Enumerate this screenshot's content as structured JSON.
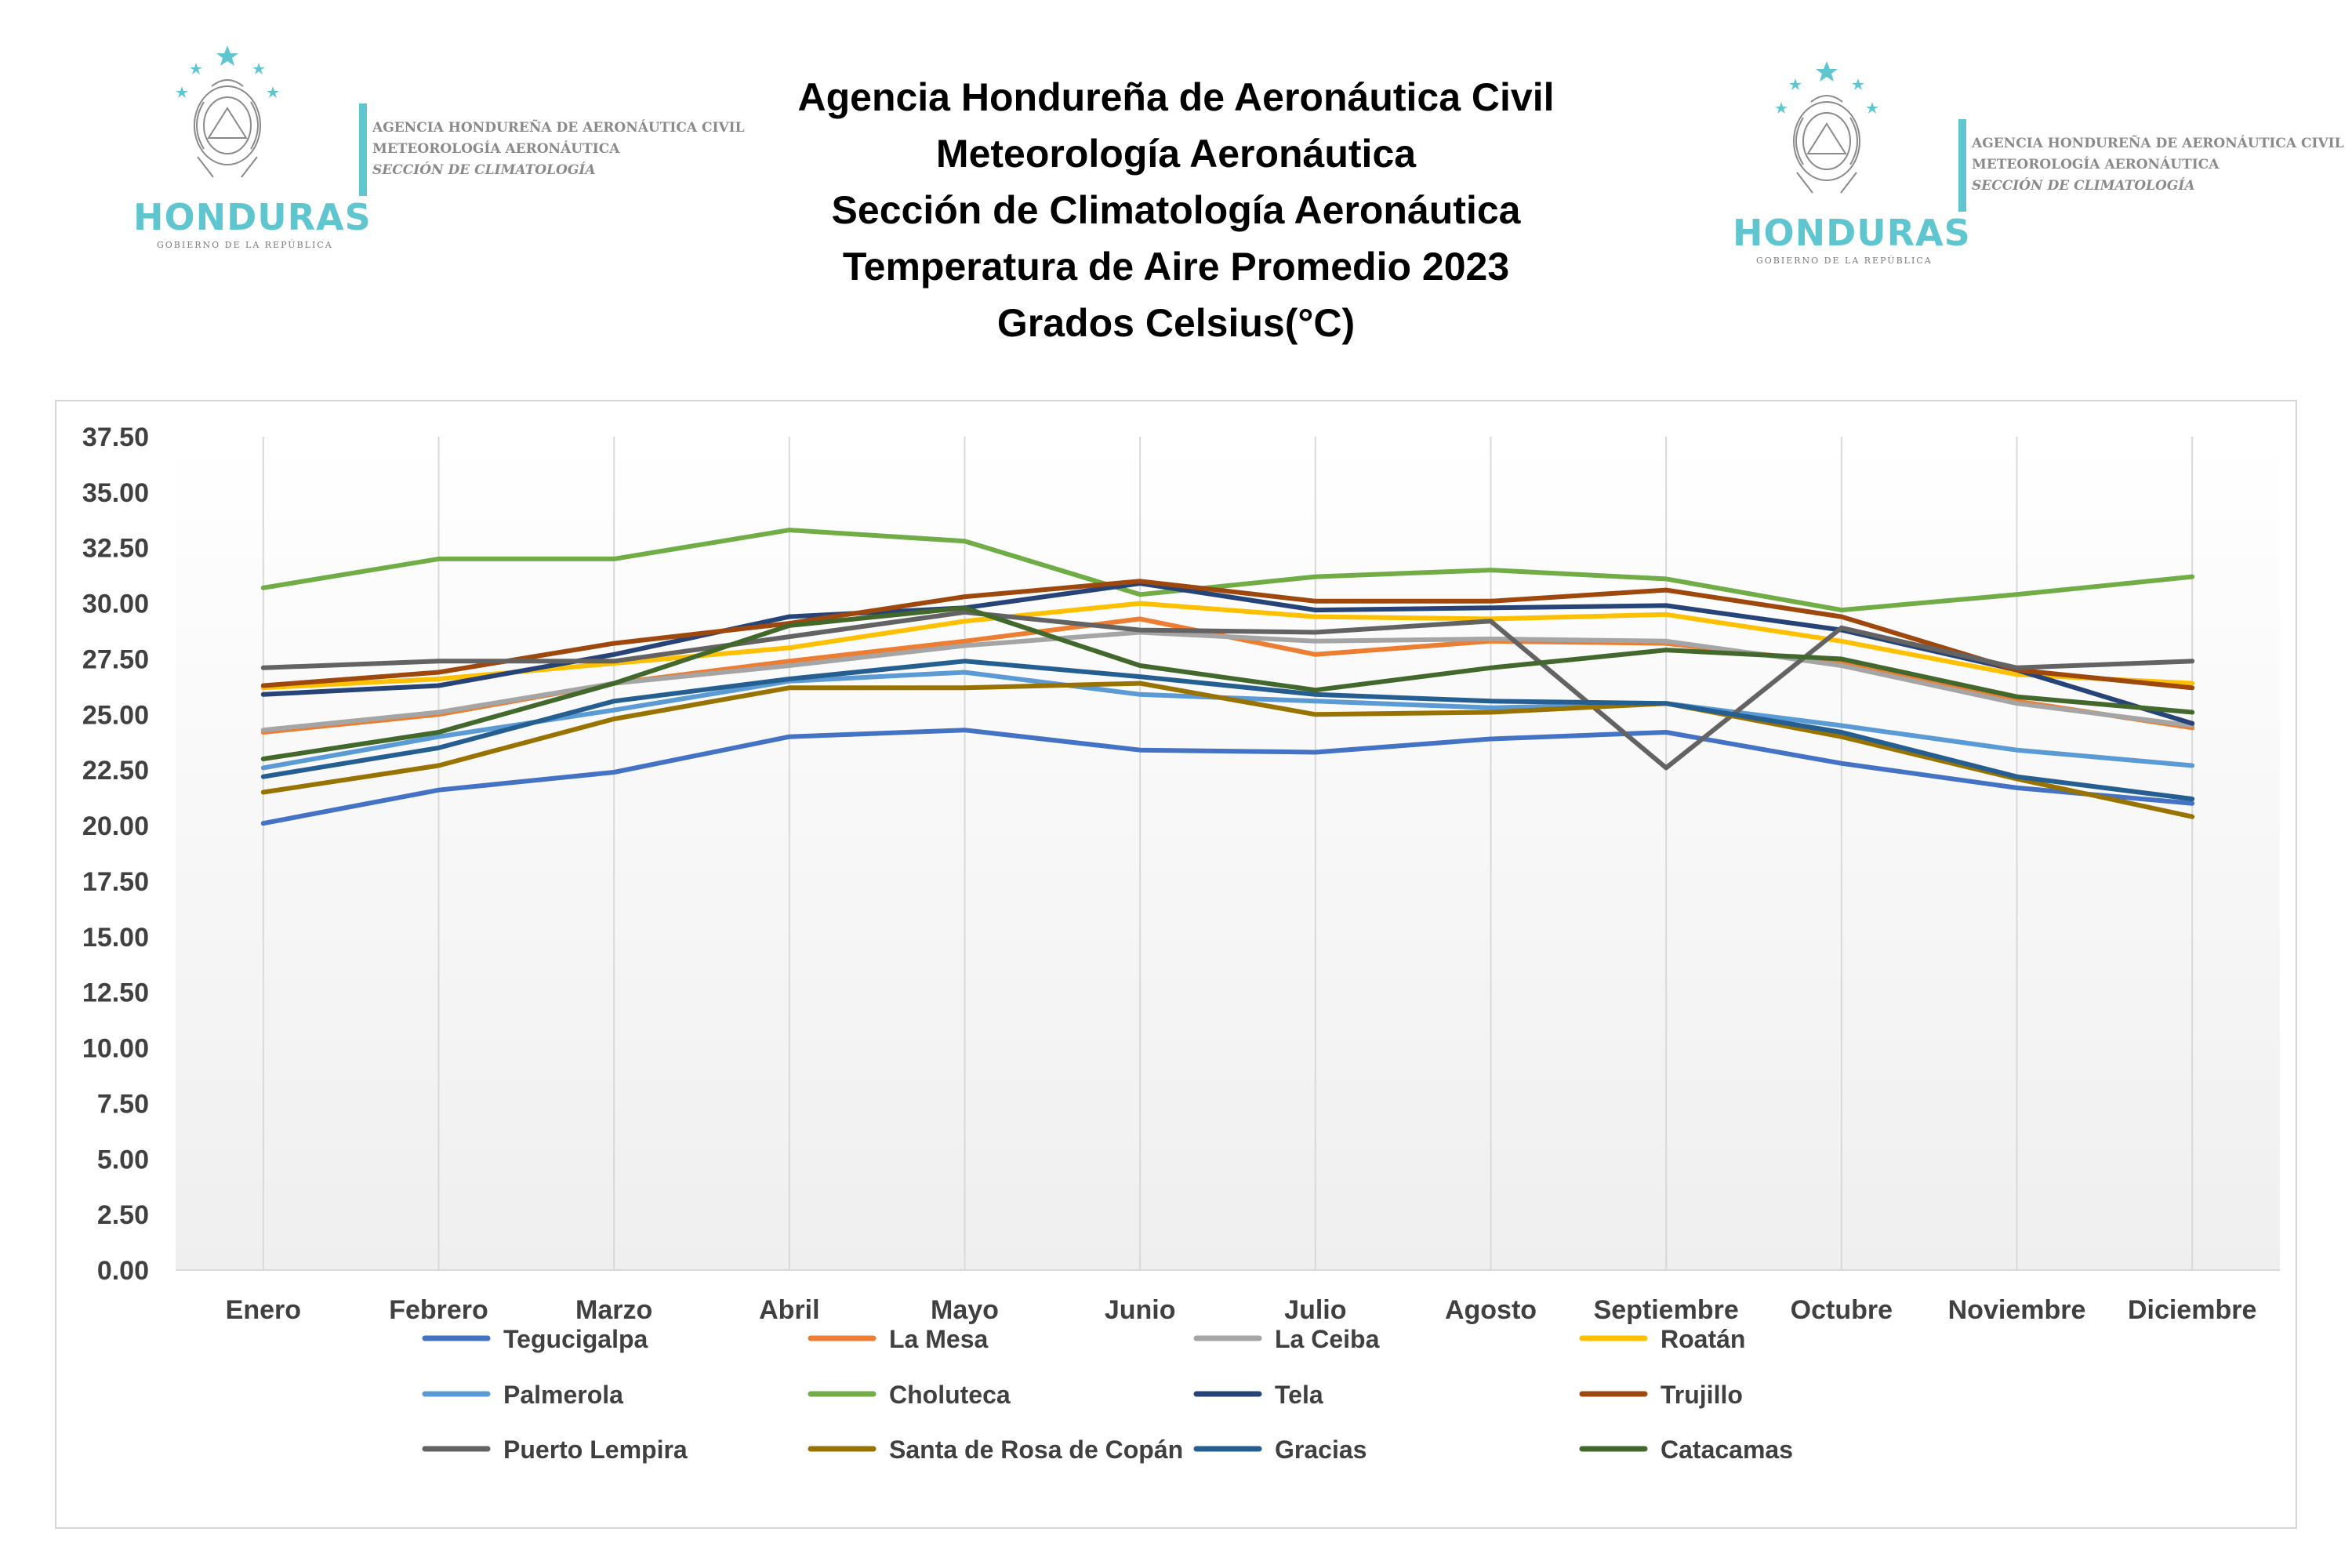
{
  "logo": {
    "brand": "HONDURAS",
    "brand_sub": "GOBIERNO DE LA REPÚBLICA",
    "agency_line1": "AGENCIA HONDUREÑA DE AERONÁUTICA CIVIL",
    "agency_line2": "METEOROLOGÍA AERONÁUTICA",
    "agency_line3": "SECCIÓN DE CLIMATOLOGÍA"
  },
  "header": {
    "line1": "Agencia Hondureña de Aeronáutica Civil",
    "line2": "Meteorología Aeronáutica",
    "line3": "Sección de Climatología Aeronáutica",
    "line4": "Temperatura de Aire Promedio 2023",
    "line5": "Grados Celsius(°C)"
  },
  "colors": {
    "brand": "#5fc6cf",
    "grid": "#d9d9d9",
    "plot_gradient_top": "#ffffff",
    "plot_gradient_bottom": "#efefef",
    "axis_text": "#404040"
  },
  "chart_data": {
    "type": "line",
    "title": "Temperatura de Aire Promedio 2023",
    "ylabel": "",
    "xlabel": "",
    "ylim": [
      0,
      37.5
    ],
    "y_ticks": [
      "0.00",
      "2.50",
      "5.00",
      "7.50",
      "10.00",
      "12.50",
      "15.00",
      "17.50",
      "20.00",
      "22.50",
      "25.00",
      "27.50",
      "30.00",
      "32.50",
      "35.00",
      "37.50"
    ],
    "categories": [
      "Enero",
      "Febrero",
      "Marzo",
      "Abril",
      "Mayo",
      "Junio",
      "Julio",
      "Agosto",
      "Septiembre",
      "Octubre",
      "Noviembre",
      "Diciembre"
    ],
    "grid": "vertical",
    "legend_position": "bottom",
    "series": [
      {
        "name": "Tegucigalpa",
        "color": "#4472c4",
        "values": [
          20.1,
          21.6,
          22.4,
          24.0,
          24.3,
          23.4,
          23.3,
          23.9,
          24.2,
          22.8,
          21.7,
          21.0
        ]
      },
      {
        "name": "La Mesa",
        "color": "#ed7d31",
        "values": [
          24.2,
          25.0,
          26.4,
          27.4,
          28.3,
          29.3,
          27.7,
          28.3,
          28.2,
          27.3,
          25.6,
          24.4
        ]
      },
      {
        "name": "La Ceiba",
        "color": "#a5a5a5",
        "values": [
          24.3,
          25.1,
          26.4,
          27.2,
          28.1,
          28.7,
          28.3,
          28.4,
          28.3,
          27.2,
          25.5,
          24.5
        ]
      },
      {
        "name": "Roatán",
        "color": "#ffc000",
        "values": [
          26.2,
          26.6,
          27.3,
          28.0,
          29.2,
          30.0,
          29.4,
          29.3,
          29.5,
          28.3,
          26.8,
          26.4
        ]
      },
      {
        "name": "Palmerola",
        "color": "#5b9bd5",
        "values": [
          22.6,
          24.0,
          25.2,
          26.5,
          26.9,
          25.9,
          25.6,
          25.3,
          25.5,
          24.5,
          23.4,
          22.7
        ]
      },
      {
        "name": "Choluteca",
        "color": "#70ad47",
        "values": [
          30.7,
          32.0,
          32.0,
          33.3,
          32.8,
          30.4,
          31.2,
          31.5,
          31.1,
          29.7,
          30.4,
          31.2
        ]
      },
      {
        "name": "Tela",
        "color": "#264478",
        "values": [
          25.9,
          26.3,
          27.7,
          29.4,
          29.8,
          30.9,
          29.7,
          29.8,
          29.9,
          28.8,
          27.0,
          24.6
        ]
      },
      {
        "name": "Trujillo",
        "color": "#9e480e",
        "values": [
          26.3,
          26.9,
          28.2,
          29.1,
          30.3,
          31.0,
          30.1,
          30.1,
          30.6,
          29.4,
          27.0,
          26.2
        ]
      },
      {
        "name": "Puerto Lempira",
        "color": "#636363",
        "values": [
          27.1,
          27.4,
          27.4,
          28.5,
          29.6,
          28.8,
          28.7,
          29.2,
          22.6,
          28.9,
          27.1,
          27.4
        ]
      },
      {
        "name": "Santa de Rosa de Copán",
        "color": "#997300",
        "values": [
          21.5,
          22.7,
          24.8,
          26.2,
          26.2,
          26.4,
          25.0,
          25.1,
          25.5,
          24.0,
          22.1,
          20.4
        ]
      },
      {
        "name": "Gracias",
        "color": "#255e91",
        "values": [
          22.2,
          23.5,
          25.6,
          26.6,
          27.4,
          26.7,
          25.9,
          25.6,
          25.5,
          24.2,
          22.2,
          21.2
        ]
      },
      {
        "name": "Catacamas",
        "color": "#43682b",
        "values": [
          23.0,
          24.2,
          26.4,
          29.0,
          29.8,
          27.2,
          26.1,
          27.1,
          27.9,
          27.5,
          25.8,
          25.1
        ]
      }
    ]
  }
}
